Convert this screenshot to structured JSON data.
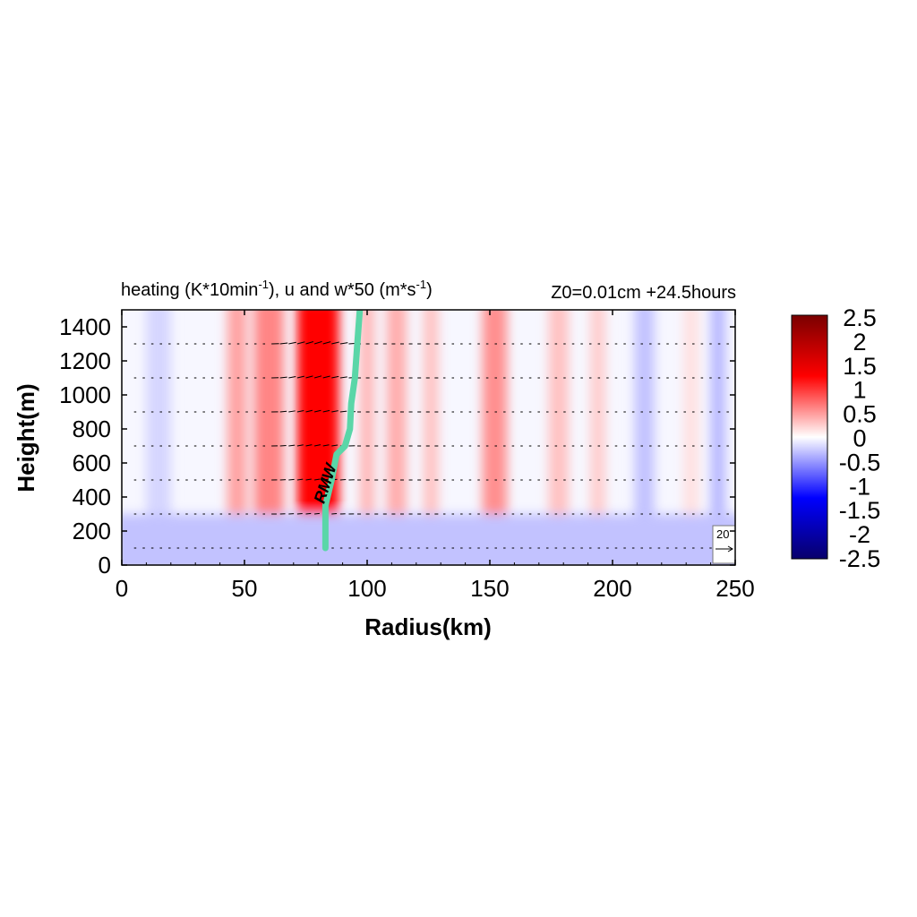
{
  "chart_data": {
    "type": "heatmap",
    "title": {
      "main": "heating (K*10min",
      "main_exp": "-1",
      "main_mid": "), u and w*50 (m*s",
      "main_exp2": "-1",
      "main_end": ")"
    },
    "subtitle": "Z0=0.01cm  +24.5hours",
    "xlabel": "Radius(km)",
    "ylabel": "Height(m)",
    "xlim": [
      0,
      250
    ],
    "ylim": [
      0,
      1500
    ],
    "xticks": [
      0,
      50,
      100,
      150,
      200,
      250
    ],
    "yticks": [
      0,
      200,
      400,
      600,
      800,
      1000,
      1200,
      1400
    ],
    "colorbar": {
      "range": [
        -2.5,
        2.5
      ],
      "ticks": [
        "2.5",
        "2",
        "1.5",
        "1",
        "0.5",
        "0",
        "-0.5",
        "-1",
        "-1.5",
        "-2",
        "-2.5"
      ],
      "colors": [
        "#08006b",
        "#0000ff",
        "#ffffff",
        "#ff0000",
        "#7a0000"
      ]
    },
    "heating_columns": [
      {
        "r": 15,
        "width": 10,
        "value": -0.2
      },
      {
        "r": 47,
        "width": 8,
        "value": 0.45
      },
      {
        "r": 60,
        "width": 12,
        "value": 0.6
      },
      {
        "r": 80,
        "width": 17,
        "value": 1.25
      },
      {
        "r": 100,
        "width": 6,
        "value": 0.35
      },
      {
        "r": 112,
        "width": 8,
        "value": 0.4
      },
      {
        "r": 126,
        "width": 6,
        "value": 0.3
      },
      {
        "r": 152,
        "width": 10,
        "value": 0.55
      },
      {
        "r": 178,
        "width": 8,
        "value": 0.3
      },
      {
        "r": 194,
        "width": 6,
        "value": 0.25
      },
      {
        "r": 213,
        "width": 8,
        "value": -0.3
      },
      {
        "r": 232,
        "width": 6,
        "value": 0.15
      },
      {
        "r": 243,
        "width": 6,
        "value": -0.35
      }
    ],
    "surface_layer": {
      "top": 300,
      "value": -0.3
    },
    "rmw": {
      "label": "RMW",
      "color": "#5ad6a8",
      "points": [
        [
          83,
          100
        ],
        [
          83,
          350
        ],
        [
          85.5,
          500
        ],
        [
          87.5,
          650
        ],
        [
          91,
          700
        ],
        [
          93,
          800
        ],
        [
          93.5,
          950
        ],
        [
          95,
          1100
        ],
        [
          96,
          1300
        ],
        [
          97,
          1500
        ]
      ]
    },
    "vector_levels": [
      100,
      300,
      500,
      700,
      900,
      1100,
      1300
    ],
    "reference_vector": {
      "label": "20"
    }
  }
}
